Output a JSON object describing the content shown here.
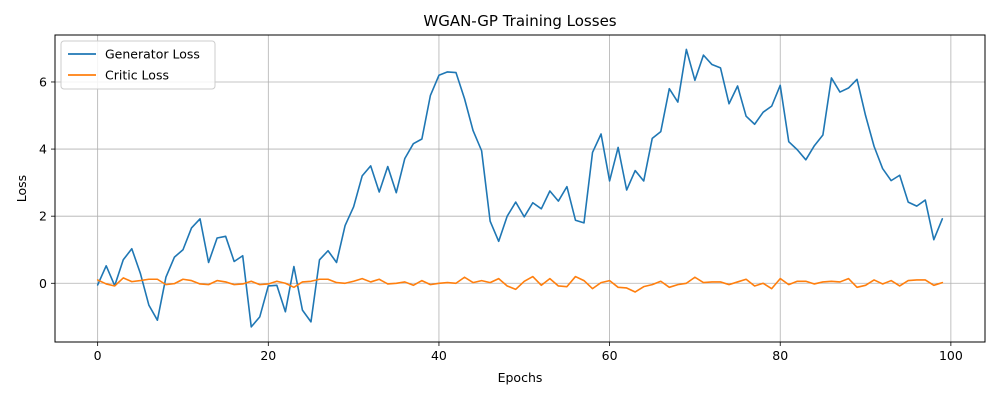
{
  "chart_data": {
    "type": "line",
    "title": "WGAN-GP Training Losses",
    "xlabel": "Epochs",
    "ylabel": "Loss",
    "xlim": [
      -5,
      104
    ],
    "ylim": [
      -1.75,
      7.4
    ],
    "xticks": [
      0,
      20,
      40,
      60,
      80,
      100
    ],
    "yticks": [
      0,
      2,
      4,
      6
    ],
    "grid": true,
    "legend_position": "top-left",
    "series": [
      {
        "name": "Generator Loss",
        "color": "#1f77b4",
        "values": [
          -0.05,
          0.52,
          -0.07,
          0.7,
          1.03,
          0.3,
          -0.65,
          -1.1,
          0.18,
          0.78,
          1.0,
          1.65,
          1.92,
          0.62,
          1.35,
          1.4,
          0.65,
          0.82,
          -1.3,
          -1.0,
          -0.08,
          -0.06,
          -0.85,
          0.5,
          -0.8,
          -1.15,
          0.7,
          0.97,
          0.62,
          1.72,
          2.28,
          3.2,
          3.5,
          2.72,
          3.48,
          2.7,
          3.72,
          4.16,
          4.3,
          5.6,
          6.2,
          6.3,
          6.28,
          5.5,
          4.55,
          3.95,
          1.85,
          1.25,
          2.0,
          2.42,
          1.98,
          2.4,
          2.22,
          2.75,
          2.45,
          2.88,
          1.88,
          1.8,
          3.9,
          4.45,
          3.05,
          4.05,
          2.78,
          3.36,
          3.05,
          4.32,
          4.52,
          5.8,
          5.4,
          6.97,
          6.05,
          6.8,
          6.52,
          6.42,
          5.35,
          5.88,
          4.98,
          4.74,
          5.1,
          5.28,
          5.9,
          4.22,
          3.98,
          3.68,
          4.1,
          4.42,
          6.12,
          5.7,
          5.82,
          6.08,
          5.0,
          4.08,
          3.42,
          3.06,
          3.22,
          2.42,
          2.3,
          2.48,
          1.3,
          1.92
        ]
      },
      {
        "name": "Critic Loss",
        "color": "#ff7f0e",
        "values": [
          0.1,
          -0.02,
          -0.08,
          0.16,
          0.05,
          0.08,
          0.12,
          0.12,
          -0.04,
          -0.01,
          0.12,
          0.08,
          -0.02,
          -0.04,
          0.08,
          0.04,
          -0.04,
          -0.02,
          0.06,
          -0.04,
          -0.02,
          0.06,
          0.0,
          -0.12,
          0.04,
          0.06,
          0.12,
          0.12,
          0.02,
          0.0,
          0.06,
          0.14,
          0.04,
          0.12,
          -0.02,
          0.0,
          0.04,
          -0.06,
          0.08,
          -0.04,
          0.0,
          0.02,
          0.0,
          0.18,
          0.02,
          0.08,
          0.02,
          0.14,
          -0.08,
          -0.18,
          0.06,
          0.2,
          -0.06,
          0.14,
          -0.08,
          -0.1,
          0.2,
          0.08,
          -0.16,
          0.02,
          0.08,
          -0.12,
          -0.14,
          -0.26,
          -0.1,
          -0.04,
          0.06,
          -0.12,
          -0.04,
          0.0,
          0.18,
          0.02,
          0.04,
          0.04,
          -0.04,
          0.04,
          0.12,
          -0.08,
          0.0,
          -0.16,
          0.14,
          -0.04,
          0.06,
          0.06,
          -0.02,
          0.04,
          0.06,
          0.04,
          0.14,
          -0.12,
          -0.06,
          0.1,
          -0.02,
          0.08,
          -0.08,
          0.08,
          0.1,
          0.1,
          -0.06,
          0.02
        ]
      }
    ]
  }
}
